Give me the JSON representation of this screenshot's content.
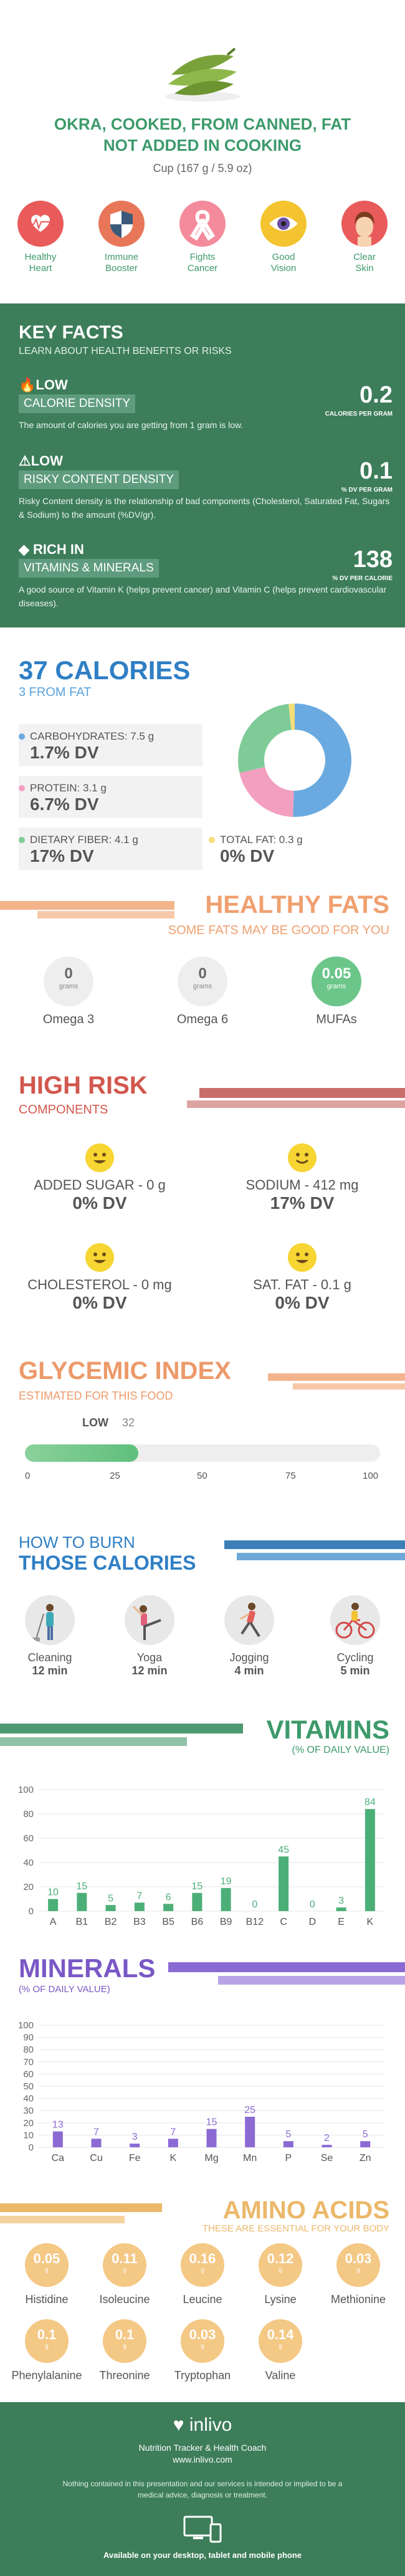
{
  "header": {
    "title_line1": "OKRA, COOKED, FROM CANNED, FAT",
    "title_line2": "NOT ADDED IN COOKING",
    "serving": "Cup (167 g / 5.9 oz)",
    "benefits": [
      {
        "label1": "Healthy",
        "label2": "Heart",
        "icon": "heart-icon",
        "color": "#e95b5b"
      },
      {
        "label1": "Immune",
        "label2": "Booster",
        "icon": "shield-icon",
        "color": "#e8775a"
      },
      {
        "label1": "Fights",
        "label2": "Cancer",
        "icon": "ribbon-icon",
        "color": "#f48b9c"
      },
      {
        "label1": "Good",
        "label2": "Vision",
        "icon": "eye-icon",
        "color": "#f3c42f"
      },
      {
        "label1": "Clear",
        "label2": "Skin",
        "icon": "face-icon",
        "color": "#e95b5b"
      }
    ]
  },
  "key_facts": {
    "title": "KEY FACTS",
    "subtitle": "LEARN ABOUT HEALTH BENEFITS OR RISKS",
    "facts": [
      {
        "label1": "LOW",
        "label2": "CALORIE DENSITY",
        "value": "0.2",
        "unit": "CALORIES PER GRAM",
        "desc": "The amount of calories you are getting from 1 gram is low."
      },
      {
        "label1": "LOW",
        "label2": "RISKY CONTENT DENSITY",
        "value": "0.1",
        "unit": "% DV PER GRAM",
        "desc": "Risky Content density is the relationship of bad components (Cholesterol, Saturated Fat, Sugars & Sodium) to the amount (%DV/gr)."
      },
      {
        "label1": "RICH IN",
        "label2": "VITAMINS & MINERALS",
        "value": "138",
        "unit": "% DV PER CALORIE",
        "desc": "A good source of Vitamin K (helps prevent cancer) and Vitamin C (helps prevent cardiovascular diseases)."
      }
    ]
  },
  "calories": {
    "title": "37 CALORIES",
    "from_fat": "3 FROM FAT",
    "macros": [
      {
        "name": "CARBOHYDRATES: 7.5 g",
        "dv": "1.7% DV",
        "color": "#6aaae0"
      },
      {
        "name": "PROTEIN: 3.1 g",
        "dv": "6.7% DV",
        "color": "#f39fc0"
      },
      {
        "name": "DIETARY FIBER: 4.1 g",
        "dv": "17% DV",
        "color": "#7fcb98"
      },
      {
        "name": "TOTAL FAT: 0.3 g",
        "dv": "0% DV",
        "color": "#f4de79"
      }
    ]
  },
  "healthy_fats": {
    "title": "HEALTHY FATS",
    "subtitle": "SOME FATS MAY BE GOOD FOR YOU",
    "items": [
      {
        "value": "0",
        "unit": "grams",
        "label": "Omega 3"
      },
      {
        "value": "0",
        "unit": "grams",
        "label": "Omega 6"
      },
      {
        "value": "0.05",
        "unit": "grams",
        "label": "MUFAs"
      }
    ]
  },
  "high_risk": {
    "title": "HIGH RISK",
    "subtitle": "COMPONENTS",
    "items": [
      {
        "name": "ADDED SUGAR - 0 g",
        "dv": "0% DV"
      },
      {
        "name": "SODIUM - 412 mg",
        "dv": "17% DV"
      },
      {
        "name": "CHOLESTEROL - 0 mg",
        "dv": "0% DV"
      },
      {
        "name": "SAT. FAT - 0.1 g",
        "dv": "0% DV"
      }
    ]
  },
  "glycemic": {
    "title": "GLYCEMIC INDEX",
    "subtitle": "ESTIMATED FOR THIS FOOD",
    "level": "LOW",
    "value": 32,
    "value_label": "32",
    "ticks": [
      "0",
      "25",
      "50",
      "75",
      "100"
    ]
  },
  "burn": {
    "line1": "HOW TO BURN",
    "line2": "THOSE CALORIES",
    "activities": [
      {
        "label": "Cleaning",
        "time": "12 min",
        "icon": "cleaning-icon"
      },
      {
        "label": "Yoga",
        "time": "12 min",
        "icon": "yoga-icon"
      },
      {
        "label": "Jogging",
        "time": "4 min",
        "icon": "jogging-icon"
      },
      {
        "label": "Cycling",
        "time": "5 min",
        "icon": "cycling-icon"
      }
    ]
  },
  "vitamins": {
    "title": "VITAMINS",
    "subtitle": "(% OF DAILY VALUE)"
  },
  "minerals": {
    "title": "MINERALS",
    "subtitle": "(% OF DAILY VALUE)"
  },
  "chart_data": [
    {
      "type": "bar",
      "title": "VITAMINS",
      "subtitle": "(% OF DAILY VALUE)",
      "categories": [
        "A",
        "B1",
        "B2",
        "B3",
        "B5",
        "B6",
        "B9",
        "B12",
        "C",
        "D",
        "E",
        "K"
      ],
      "values": [
        10,
        15,
        5,
        7,
        6,
        15,
        19,
        0,
        45,
        0,
        3,
        84
      ],
      "ylim": [
        0,
        100
      ],
      "yticks": [
        "0",
        "20",
        "40",
        "60",
        "80",
        "100"
      ],
      "color": "#4caf78"
    },
    {
      "type": "bar",
      "title": "MINERALS",
      "subtitle": "(% OF DAILY VALUE)",
      "categories": [
        "Ca",
        "Cu",
        "Fe",
        "K",
        "Mg",
        "Mn",
        "P",
        "Se",
        "Zn"
      ],
      "values": [
        13,
        7,
        3,
        7,
        15,
        25,
        5,
        2,
        5
      ],
      "ylim": [
        0,
        100
      ],
      "yticks": [
        "0",
        "10",
        "20",
        "30",
        "40",
        "50",
        "60",
        "70",
        "80",
        "90",
        "100"
      ],
      "color": "#8b6ad4"
    }
  ],
  "amino": {
    "title": "AMINO ACIDS",
    "subtitle": "THESE ARE ESSENTIAL FOR YOUR BODY",
    "items": [
      {
        "value": "0.05",
        "unit": "g",
        "label": "Histidine"
      },
      {
        "value": "0.11",
        "unit": "g",
        "label": "Isoleucine"
      },
      {
        "value": "0.16",
        "unit": "g",
        "label": "Leucine"
      },
      {
        "value": "0.12",
        "unit": "g",
        "label": "Lysine"
      },
      {
        "value": "0.03",
        "unit": "g",
        "label": "Methionine"
      },
      {
        "value": "0.1",
        "unit": "g",
        "label": "Phenylalanine"
      },
      {
        "value": "0.1",
        "unit": "g",
        "label": "Threonine"
      },
      {
        "value": "0.03",
        "unit": "g",
        "label": "Tryptophan"
      },
      {
        "value": "0.14",
        "unit": "g",
        "label": "Valine"
      }
    ]
  },
  "footer": {
    "brand": "inlivo",
    "tagline": "Nutrition Tracker & Health Coach",
    "url": "www.inlivo.com",
    "disclaimer": "Nothing contained in this presentation and our services is intended or implied to be a medical advice, diagnosis or treatment.",
    "available": "Available on your desktop, tablet and mobile phone"
  }
}
